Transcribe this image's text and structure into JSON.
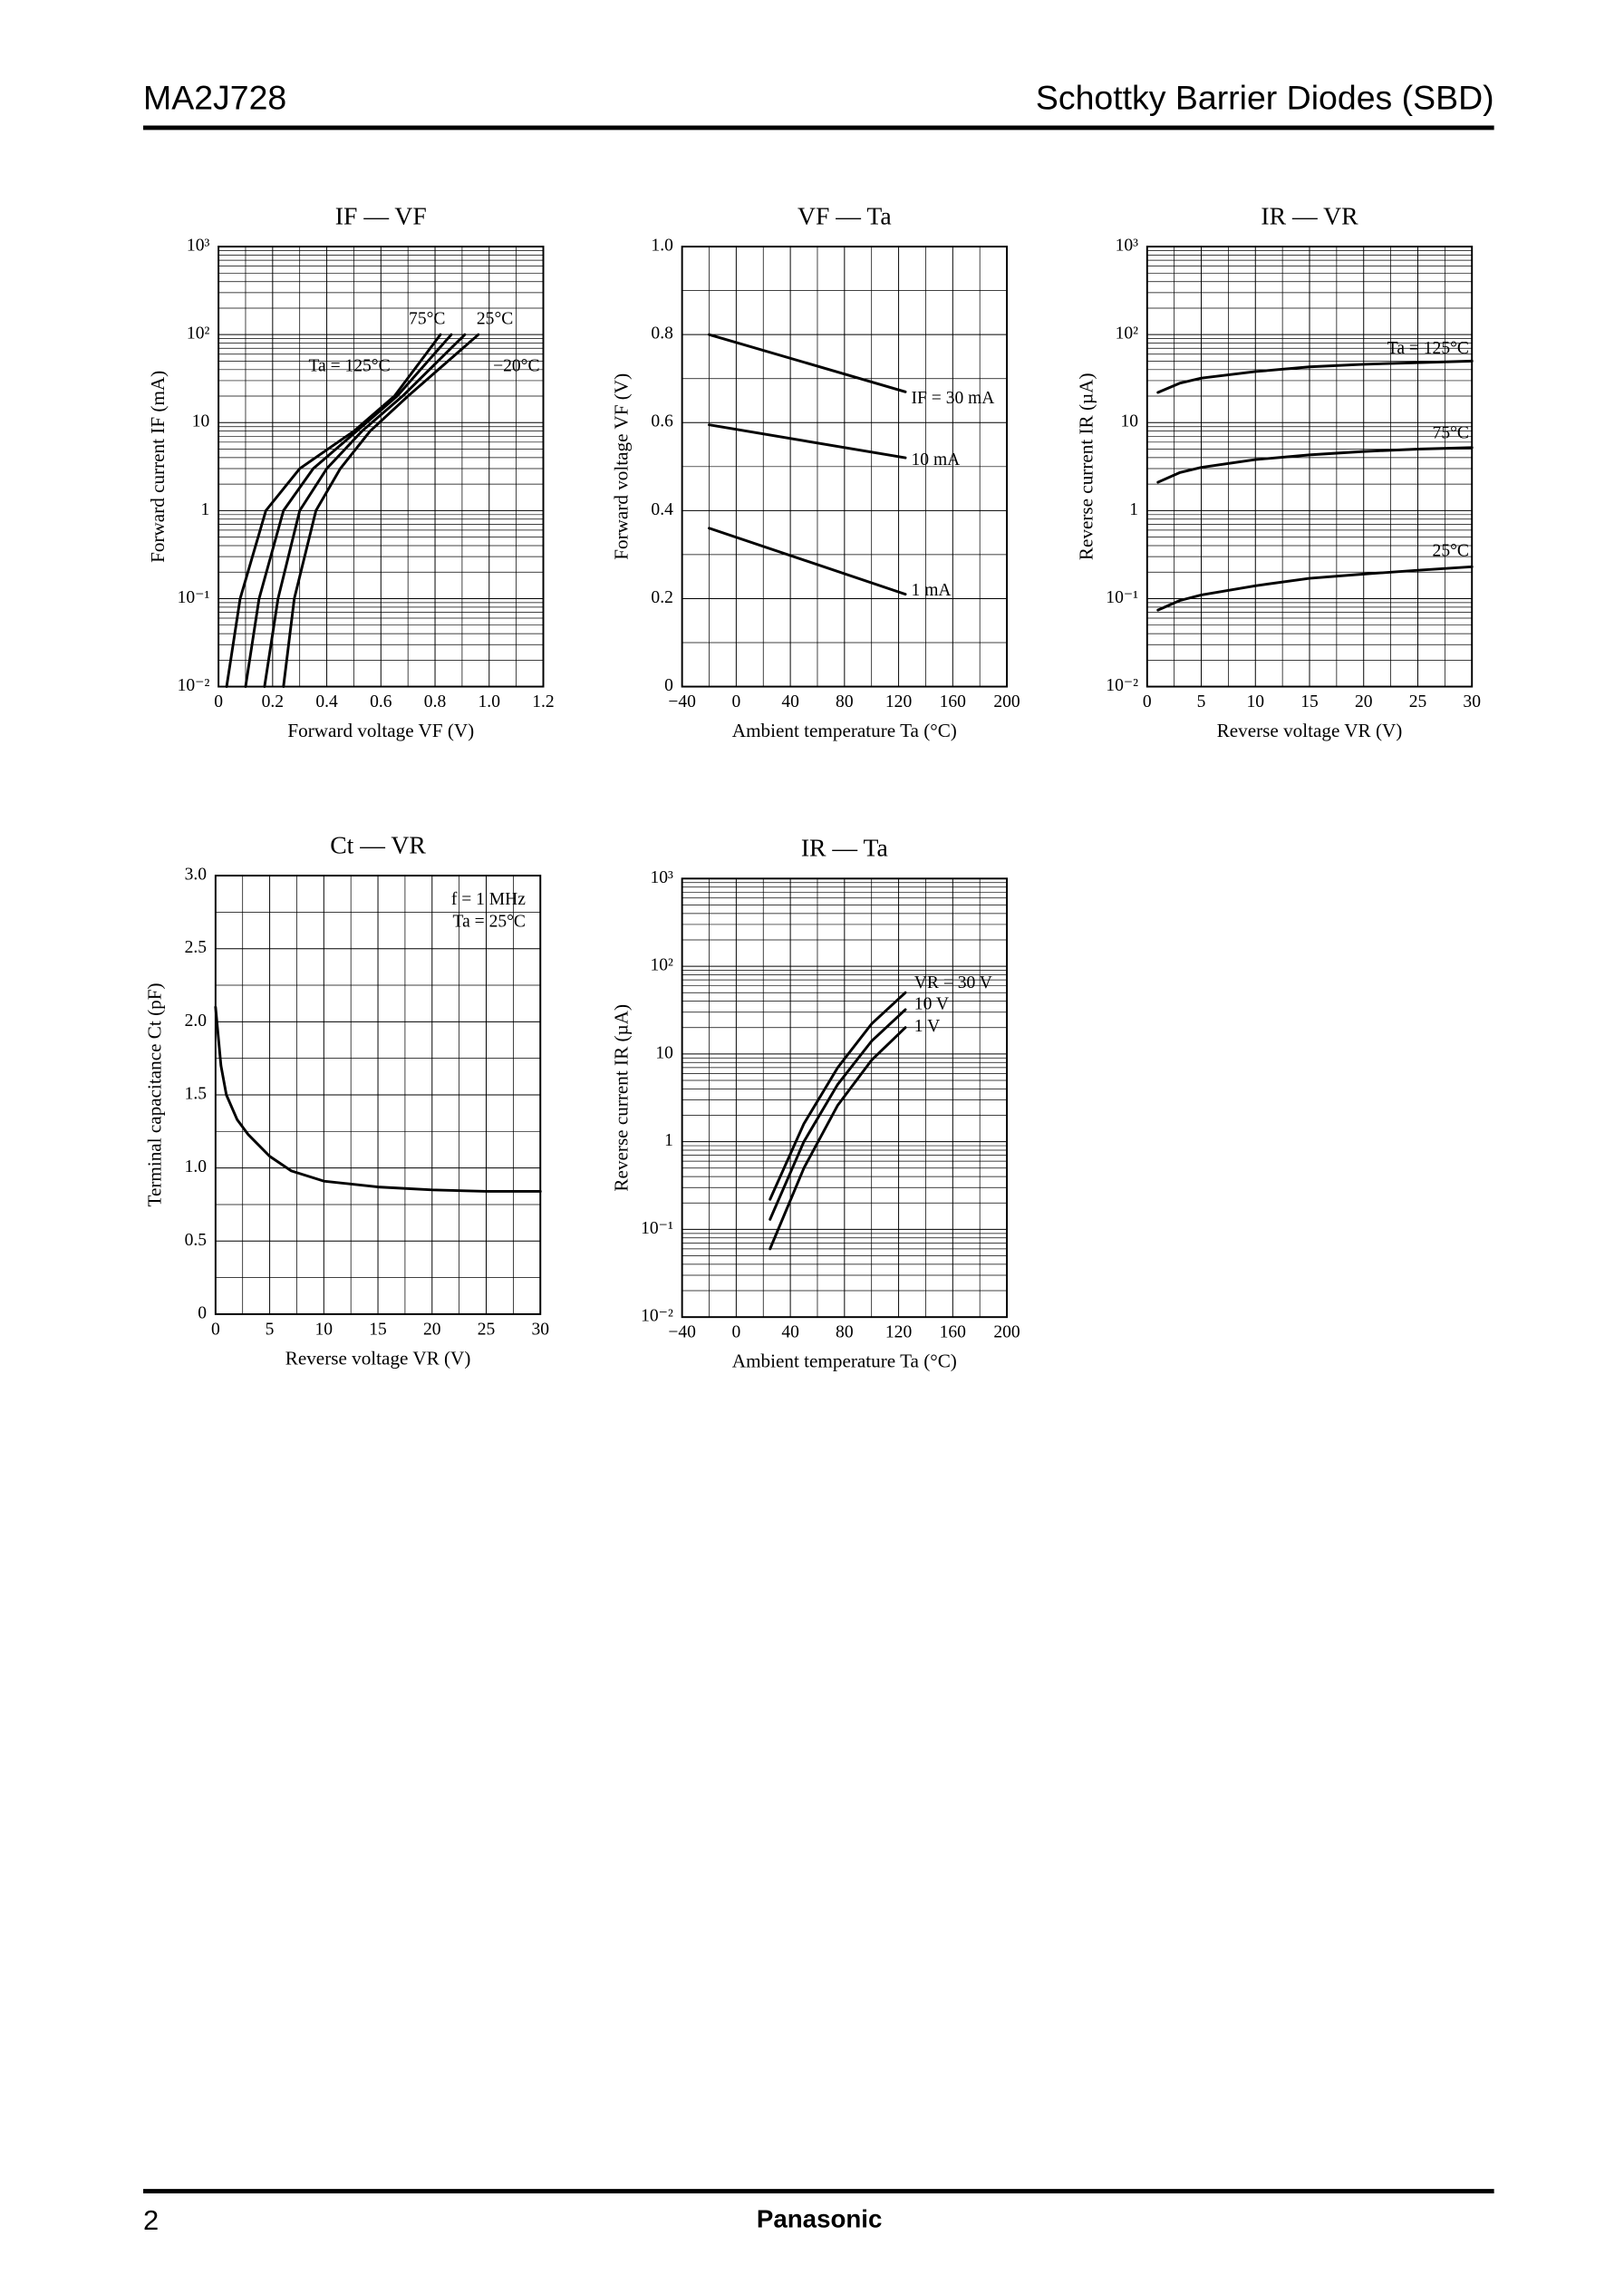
{
  "header": {
    "part": "MA2J728",
    "category": "Schottky Barrier Diodes (SBD)"
  },
  "footer": {
    "page": "2",
    "brand": "Panasonic"
  },
  "chart_data": [
    {
      "type": "line",
      "title": "IF — VF",
      "x_label": "Forward voltage  VF  (V)",
      "y_label": "Forward current  IF  (mA)",
      "xlim": [
        0,
        1.2
      ],
      "xticks": [
        0,
        0.2,
        0.4,
        0.6,
        0.8,
        {
          "value": 1,
          "label": "1.0"
        },
        1.2
      ],
      "ylim": [
        0.01,
        1000
      ],
      "log_y": true,
      "yticks": [
        {
          "value": 0.01,
          "label": "10⁻²"
        },
        {
          "value": 0.1,
          "label": "10⁻¹"
        },
        1,
        10,
        {
          "value": 100,
          "label": "10²"
        },
        {
          "value": 1000,
          "label": "10³"
        }
      ],
      "grid": true,
      "minor_grid": true,
      "series": [
        {
          "name": "Ta = 125°C",
          "color": "#000000",
          "x": [
            0.03,
            0.08,
            0.175,
            0.3,
            0.5,
            0.65,
            0.82
          ],
          "values": [
            0.01,
            0.1,
            1,
            3,
            8,
            20,
            100
          ]
        },
        {
          "name": "75°C",
          "color": "#000000",
          "x": [
            0.1,
            0.15,
            0.24,
            0.35,
            0.5,
            0.66,
            0.86
          ],
          "values": [
            0.01,
            0.1,
            1,
            3,
            7.5,
            20,
            100
          ]
        },
        {
          "name": "25°C",
          "color": "#000000",
          "x": [
            0.17,
            0.22,
            0.3,
            0.4,
            0.53,
            0.68,
            0.91
          ],
          "values": [
            0.01,
            0.1,
            1,
            3,
            8,
            20,
            100
          ]
        },
        {
          "name": "−20°C",
          "color": "#000000",
          "x": [
            0.24,
            0.28,
            0.36,
            0.45,
            0.56,
            0.7,
            0.96
          ],
          "values": [
            0.01,
            0.1,
            1,
            3,
            8,
            20,
            100
          ]
        }
      ]
    },
    {
      "type": "line",
      "title": "VF — Ta",
      "x_label": "Ambient temperature  Ta  (°C)",
      "y_label": "Forward voltage  VF  (V)",
      "xlim": [
        -40,
        200
      ],
      "xticks": [
        {
          "value": -40,
          "label": "−40"
        },
        0,
        40,
        80,
        120,
        160,
        200
      ],
      "ylim": [
        0,
        1
      ],
      "yticks": [
        0,
        0.2,
        0.4,
        0.6,
        0.8,
        {
          "value": 1,
          "label": "1.0"
        }
      ],
      "grid": true,
      "minor_grid": true,
      "series": [
        {
          "name": "IF = 30 mA",
          "color": "#000000",
          "x": [
            -20,
            125
          ],
          "values": [
            0.8,
            0.67
          ]
        },
        {
          "name": "10 mA",
          "color": "#000000",
          "x": [
            -20,
            125
          ],
          "values": [
            0.595,
            0.52
          ]
        },
        {
          "name": "1 mA",
          "color": "#000000",
          "x": [
            -20,
            125
          ],
          "values": [
            0.36,
            0.21
          ]
        }
      ]
    },
    {
      "type": "line",
      "title": "IR — VR",
      "x_label": "Reverse voltage  VR  (V)",
      "y_label": "Reverse current  IR  (µA)",
      "xlim": [
        0,
        30
      ],
      "xticks": [
        0,
        5,
        10,
        15,
        20,
        25,
        30
      ],
      "ylim": [
        0.01,
        1000
      ],
      "log_y": true,
      "yticks": [
        {
          "value": 0.01,
          "label": "10⁻²"
        },
        {
          "value": 0.1,
          "label": "10⁻¹"
        },
        1,
        10,
        {
          "value": 100,
          "label": "10²"
        },
        {
          "value": 1000,
          "label": "10³"
        }
      ],
      "grid": true,
      "minor_grid": true,
      "series": [
        {
          "name": "Ta = 125°C",
          "color": "#000000",
          "x": [
            1,
            3,
            5,
            10,
            15,
            20,
            25,
            30
          ],
          "values": [
            22,
            28,
            32,
            38,
            43,
            46,
            48,
            50
          ]
        },
        {
          "name": "75°C",
          "color": "#000000",
          "x": [
            1,
            3,
            5,
            10,
            15,
            20,
            25,
            30
          ],
          "values": [
            2.1,
            2.7,
            3.1,
            3.8,
            4.3,
            4.7,
            5,
            5.2
          ]
        },
        {
          "name": "25°C",
          "color": "#000000",
          "x": [
            1,
            3,
            5,
            10,
            15,
            20,
            25,
            30
          ],
          "values": [
            0.074,
            0.095,
            0.11,
            0.14,
            0.17,
            0.19,
            0.21,
            0.23
          ]
        }
      ]
    },
    {
      "type": "line",
      "title": "Ct — VR",
      "x_label": "Reverse voltage  VR  (V)",
      "y_label": "Terminal capacitance  Ct  (pF)",
      "xlim": [
        0,
        30
      ],
      "xticks": [
        0,
        5,
        10,
        15,
        20,
        25,
        30
      ],
      "ylim": [
        0,
        3
      ],
      "yticks": [
        0,
        0.5,
        {
          "value": 1,
          "label": "1.0"
        },
        1.5,
        {
          "value": 2,
          "label": "2.0"
        },
        2.5,
        {
          "value": 3,
          "label": "3.0"
        }
      ],
      "grid": true,
      "minor_grid": true,
      "annotations": [
        "f = 1 MHz",
        "Ta = 25°C"
      ],
      "series": [
        {
          "color": "#000000",
          "x": [
            0,
            0.5,
            1,
            2,
            3,
            5,
            7,
            10,
            15,
            20,
            25,
            30
          ],
          "values": [
            2.1,
            1.7,
            1.5,
            1.33,
            1.23,
            1.08,
            0.98,
            0.91,
            0.87,
            0.85,
            0.84,
            0.84
          ]
        }
      ]
    },
    {
      "type": "line",
      "title": "IR — Ta",
      "x_label": "Ambient temperature  Ta  (°C)",
      "y_label": "Reverse current  IR  (µA)",
      "xlim": [
        -40,
        200
      ],
      "xticks": [
        {
          "value": -40,
          "label": "−40"
        },
        0,
        40,
        80,
        120,
        160,
        200
      ],
      "ylim": [
        0.01,
        1000
      ],
      "log_y": true,
      "yticks": [
        {
          "value": 0.01,
          "label": "10⁻²"
        },
        {
          "value": 0.1,
          "label": "10⁻¹"
        },
        1,
        10,
        {
          "value": 100,
          "label": "10²"
        },
        {
          "value": 1000,
          "label": "10³"
        }
      ],
      "grid": true,
      "minor_grid": true,
      "series": [
        {
          "name": "VR = 30 V",
          "color": "#000000",
          "x": [
            25,
            50,
            75,
            100,
            125
          ],
          "values": [
            0.22,
            1.6,
            7,
            22,
            50
          ]
        },
        {
          "name": "10 V",
          "color": "#000000",
          "x": [
            25,
            50,
            75,
            100,
            125
          ],
          "values": [
            0.13,
            1,
            4.5,
            14,
            32
          ]
        },
        {
          "name": "1 V",
          "color": "#000000",
          "x": [
            25,
            50,
            75,
            100,
            125
          ],
          "values": [
            0.06,
            0.5,
            2.6,
            8.5,
            20
          ]
        }
      ]
    }
  ]
}
